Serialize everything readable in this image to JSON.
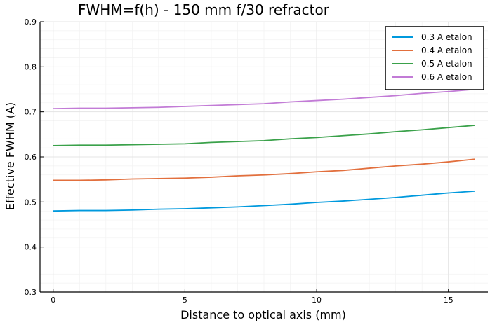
{
  "chart_data": {
    "type": "line",
    "title": "FWHM=f(h) - 150 mm f/30 refractor",
    "xlabel": "Distance to optical axis (mm)",
    "ylabel": "Effective FWHM (A)",
    "xlim": [
      -0.5,
      16.5
    ],
    "ylim": [
      0.3,
      0.9
    ],
    "xticks": [
      0,
      5,
      10,
      15
    ],
    "yticks": [
      0.3,
      0.4,
      0.5,
      0.6,
      0.7,
      0.8,
      0.9
    ],
    "xtick_labels": [
      "0",
      "5",
      "10",
      "15"
    ],
    "ytick_labels": [
      "0.3",
      "0.4",
      "0.5",
      "0.6",
      "0.7",
      "0.8",
      "0.9"
    ],
    "grid": true,
    "legend_position": "top-right",
    "x": [
      0,
      1,
      2,
      3,
      4,
      5,
      6,
      7,
      8,
      9,
      10,
      11,
      12,
      13,
      14,
      15,
      16
    ],
    "series": [
      {
        "name": "0.3 A etalon",
        "color": "#0099dd",
        "values": [
          0.48,
          0.481,
          0.481,
          0.482,
          0.484,
          0.485,
          0.487,
          0.489,
          0.492,
          0.495,
          0.499,
          0.502,
          0.506,
          0.51,
          0.515,
          0.52,
          0.524
        ]
      },
      {
        "name": "0.4 A etalon",
        "color": "#e26f3d",
        "values": [
          0.548,
          0.548,
          0.549,
          0.551,
          0.552,
          0.553,
          0.555,
          0.558,
          0.56,
          0.563,
          0.567,
          0.57,
          0.575,
          0.58,
          0.584,
          0.589,
          0.595
        ]
      },
      {
        "name": "0.5 A etalon",
        "color": "#3aa14a",
        "values": [
          0.625,
          0.626,
          0.626,
          0.627,
          0.628,
          0.629,
          0.632,
          0.634,
          0.636,
          0.64,
          0.643,
          0.647,
          0.651,
          0.656,
          0.66,
          0.665,
          0.67
        ]
      },
      {
        "name": "0.6 A etalon",
        "color": "#c27bd6",
        "values": [
          0.707,
          0.708,
          0.708,
          0.709,
          0.71,
          0.712,
          0.714,
          0.716,
          0.718,
          0.722,
          0.725,
          0.728,
          0.732,
          0.736,
          0.741,
          0.745,
          0.75
        ]
      }
    ]
  }
}
